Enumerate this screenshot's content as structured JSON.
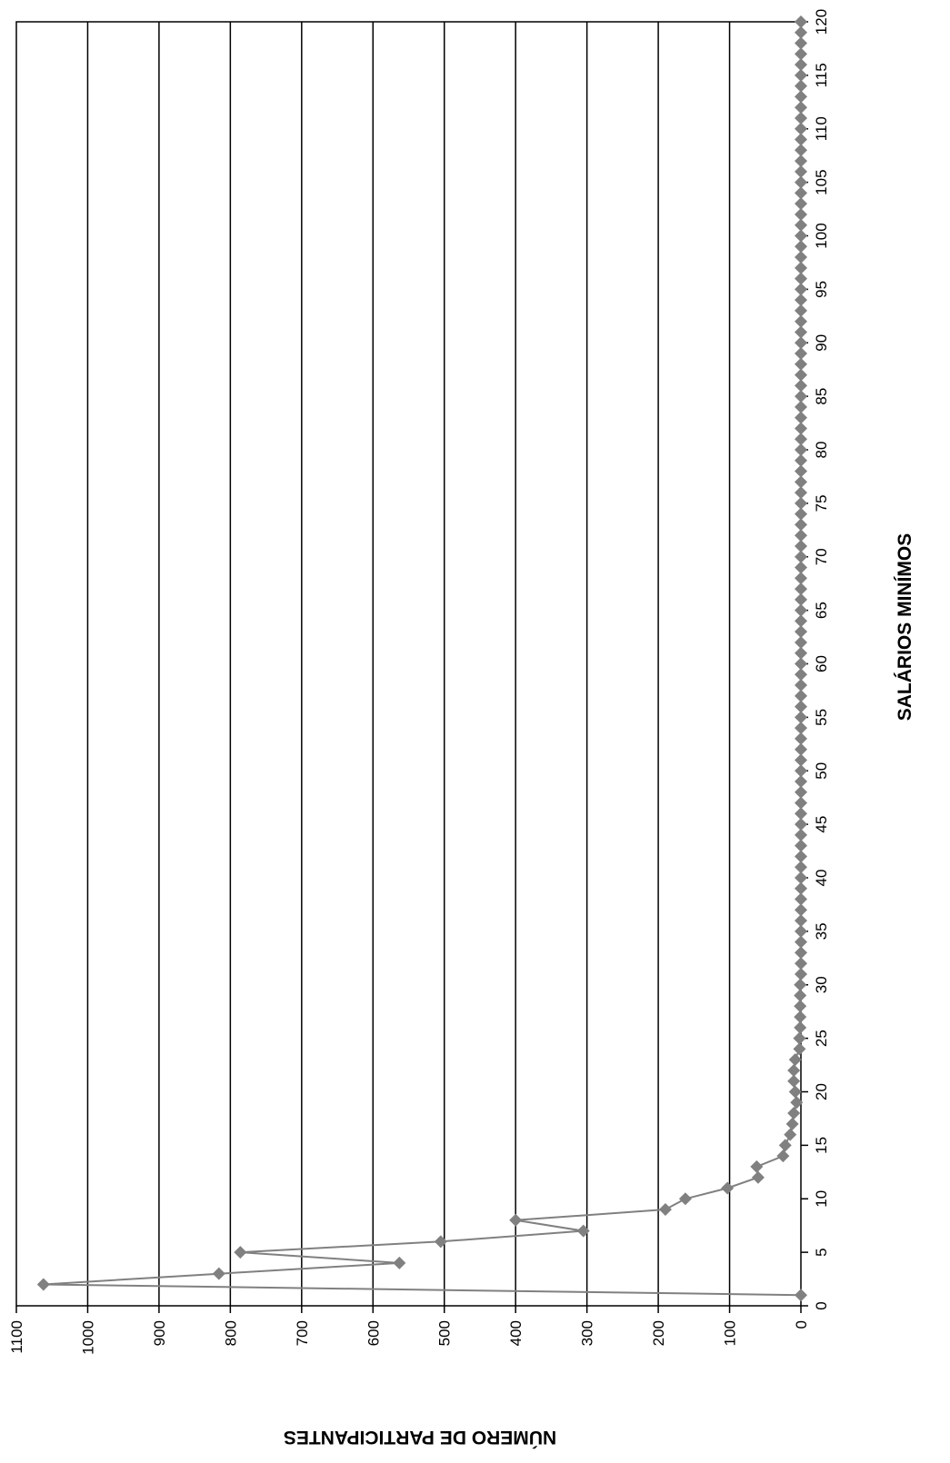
{
  "chart_data": {
    "type": "line",
    "title": "",
    "xlabel": "SALÁRIOS MINÍMOS",
    "ylabel": "NÚMERO DE PARTICIPANTES",
    "xlim": [
      0,
      120
    ],
    "ylim": [
      0,
      1100
    ],
    "x_ticks": [
      0,
      5,
      10,
      15,
      20,
      25,
      30,
      35,
      40,
      45,
      50,
      55,
      60,
      65,
      70,
      75,
      80,
      85,
      90,
      95,
      100,
      105,
      110,
      115,
      120
    ],
    "y_ticks": [
      0,
      100,
      200,
      300,
      400,
      500,
      600,
      700,
      800,
      900,
      1000,
      1100
    ],
    "grid": "horizontal major gridlines at each y tick",
    "orientation": "page rotated 90 degrees counter-clockwise",
    "line_color": "#808080",
    "marker": "diamond",
    "series": [
      {
        "x": [
          1,
          2,
          3,
          4,
          5,
          6,
          7,
          8,
          9,
          10,
          11,
          12,
          13,
          14,
          15,
          16,
          17,
          18,
          19,
          20,
          21,
          22,
          23,
          24,
          25,
          26,
          27,
          28,
          29,
          30,
          31,
          32,
          33,
          34,
          35,
          36,
          37,
          38,
          39,
          40,
          41,
          42,
          43,
          44,
          45,
          46,
          47,
          48,
          49,
          50,
          51,
          52,
          53,
          54,
          55,
          56,
          57,
          58,
          59,
          60,
          61,
          62,
          63,
          64,
          65,
          66,
          67,
          68,
          69,
          70,
          71,
          72,
          73,
          74,
          75,
          76,
          77,
          78,
          79,
          80,
          81,
          82,
          83,
          84,
          85,
          86,
          87,
          88,
          89,
          90,
          91,
          92,
          93,
          94,
          95,
          96,
          97,
          98,
          99,
          100,
          101,
          102,
          103,
          104,
          105,
          106,
          107,
          108,
          109,
          110,
          111,
          112,
          113,
          114,
          115,
          116,
          117,
          118,
          119,
          120
        ],
        "values": [
          0,
          1062,
          816,
          563,
          786,
          505,
          305,
          400,
          190,
          162,
          103,
          60,
          62,
          25,
          22,
          15,
          12,
          10,
          6,
          8,
          10,
          10,
          8,
          2,
          2,
          1,
          1,
          1,
          1,
          1,
          0,
          0,
          0,
          0,
          0,
          0,
          0,
          0,
          0,
          0,
          0,
          0,
          0,
          0,
          0,
          0,
          0,
          0,
          0,
          0,
          0,
          0,
          0,
          0,
          0,
          0,
          0,
          0,
          0,
          0,
          0,
          0,
          0,
          0,
          0,
          0,
          0,
          0,
          0,
          0,
          0,
          0,
          0,
          0,
          0,
          0,
          0,
          0,
          0,
          0,
          0,
          0,
          0,
          0,
          0,
          0,
          0,
          0,
          0,
          0,
          0,
          0,
          0,
          0,
          0,
          0,
          0,
          0,
          0,
          0,
          0,
          0,
          0,
          0,
          0,
          0,
          0,
          0,
          0,
          0,
          0,
          0,
          0,
          0,
          0,
          0,
          0,
          0,
          0,
          0
        ]
      }
    ]
  }
}
